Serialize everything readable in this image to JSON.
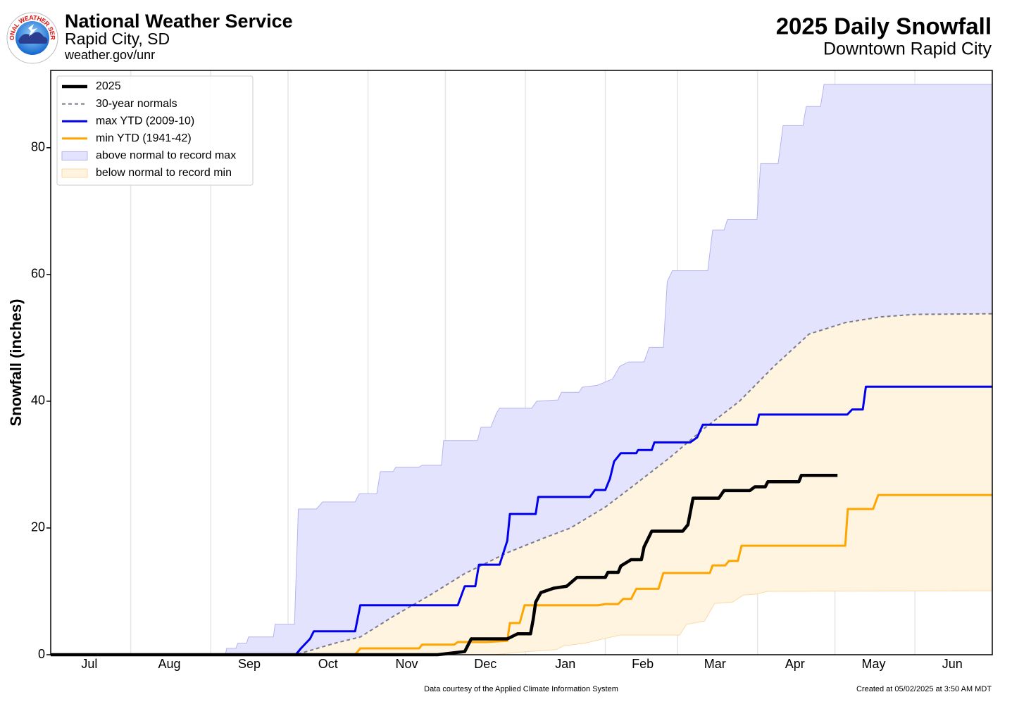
{
  "header": {
    "agency": "National Weather Service",
    "office": "Rapid City, SD",
    "url": "weather.gov/unr",
    "logo_text": "NATIONAL WEATHER SERVICE"
  },
  "chart_data": {
    "type": "line",
    "title": "2025 Daily Snowfall",
    "subtitle": "Downtown Rapid City",
    "ylabel": "Snowfall (inches)",
    "xlim": [
      0,
      365
    ],
    "ylim": [
      0,
      92.2
    ],
    "xticks": [
      {
        "value": 15,
        "label": "Jul"
      },
      {
        "value": 46,
        "label": "Aug"
      },
      {
        "value": 77,
        "label": "Sep"
      },
      {
        "value": 107.5,
        "label": "Oct"
      },
      {
        "value": 138,
        "label": "Nov"
      },
      {
        "value": 168.5,
        "label": "Dec"
      },
      {
        "value": 199.5,
        "label": "Jan"
      },
      {
        "value": 229.5,
        "label": "Feb"
      },
      {
        "value": 257.5,
        "label": "Mar"
      },
      {
        "value": 288.5,
        "label": "Apr"
      },
      {
        "value": 319,
        "label": "May"
      },
      {
        "value": 349.5,
        "label": "Jun"
      }
    ],
    "xgrid": [
      31,
      62,
      92,
      123,
      153,
      184,
      215,
      243,
      274,
      304,
      335
    ],
    "yticks": [
      0,
      20,
      40,
      60,
      80
    ],
    "legend": "upper left",
    "series": [
      {
        "name": "2025",
        "color": "#000000",
        "width": 4.5,
        "dash": false,
        "x": [
          0,
          150,
          160.5,
          163,
          177,
          181,
          186,
          187,
          188,
          190,
          195,
          200,
          204,
          215,
          216,
          220,
          221,
          225,
          229,
          230,
          233,
          245,
          247,
          249,
          259,
          261,
          271,
          273,
          277,
          278,
          290,
          291,
          305
        ],
        "values": [
          0,
          0,
          0.5,
          2.5,
          2.5,
          3.3,
          3.3,
          5.5,
          8.3,
          9.8,
          10.5,
          10.8,
          12.2,
          12.2,
          13,
          13,
          14,
          15,
          15,
          17,
          19.5,
          19.5,
          20.5,
          24.7,
          24.7,
          25.9,
          25.9,
          26.5,
          26.5,
          27.3,
          27.3,
          28.3,
          28.3
        ]
      },
      {
        "name": "30-year normals",
        "color": "#7a7a8c",
        "width": 2,
        "dash": true,
        "x": [
          0,
          95,
          110,
          120,
          133,
          147,
          160.5,
          177,
          190.5,
          201.5,
          215,
          226,
          240,
          253,
          267,
          280.6,
          294,
          308,
          321.6,
          335,
          365
        ],
        "values": [
          0,
          0,
          1.8,
          2.8,
          6.1,
          9.4,
          12.8,
          16.1,
          18.3,
          20,
          23.3,
          26.7,
          31.1,
          35.6,
          40,
          45.6,
          50.6,
          52.4,
          53.3,
          53.7,
          53.8
        ]
      },
      {
        "name": "max YTD (2009-10)",
        "color": "#0000ee",
        "width": 3,
        "dash": false,
        "x": [
          0,
          95,
          97,
          100.5,
          102,
          118,
          120,
          157.8,
          160.5,
          164.6,
          166,
          174,
          177,
          178,
          188,
          189,
          209,
          211,
          215,
          216.8,
          218.4,
          221,
          227,
          227.7,
          233,
          234,
          247.9,
          250.6,
          252.8,
          273.8,
          274.6,
          308.8,
          310.7,
          314.8,
          316,
          365
        ],
        "values": [
          0,
          0,
          1,
          2.5,
          3.7,
          3.7,
          7.8,
          7.8,
          10.8,
          10.8,
          14.2,
          14.2,
          18,
          22.2,
          22.2,
          24.9,
          24.9,
          26,
          26,
          27.8,
          30.5,
          31.8,
          31.8,
          32.3,
          32.3,
          33.5,
          33.5,
          34.3,
          36.3,
          36.3,
          37.9,
          37.9,
          38.7,
          38.7,
          42.3,
          42.3
        ]
      },
      {
        "name": "min YTD (1941-42)",
        "color": "#ffa500",
        "width": 3,
        "dash": false,
        "x": [
          0,
          118,
          120,
          142.8,
          144,
          156.4,
          157.8,
          168.7,
          177,
          178,
          181.8,
          183.7,
          212.4,
          215,
          220,
          221.9,
          225,
          227,
          235.6,
          237.5,
          255.5,
          256.6,
          261.5,
          262.9,
          266.4,
          267.8,
          308,
          309,
          318.8,
          320.8,
          365
        ],
        "values": [
          0,
          0,
          1,
          1,
          1.6,
          1.6,
          2,
          2,
          2.2,
          5,
          5,
          7.8,
          7.8,
          8,
          8,
          8.8,
          8.8,
          10.4,
          10.4,
          12.9,
          12.9,
          14.1,
          14.1,
          14.8,
          14.8,
          17.2,
          17.2,
          23,
          23,
          25.2,
          25.2
        ]
      }
    ],
    "bands": [
      {
        "name": "above normal to record max",
        "color": "#e3e3fd",
        "edge": "#b4b4ee",
        "x": [
          0,
          67.7,
          68.2,
          71.8,
          72.5,
          75.9,
          76.7,
          86.3,
          87,
          94.5,
          96,
          103,
          105.4,
          118,
          119.6,
          126.4,
          127.8,
          132.7,
          133.8,
          142.8,
          144,
          151.5,
          152.3,
          165.4,
          166.8,
          170.6,
          172.8,
          174,
          186.5,
          188.4,
          196.6,
          198,
          204.8,
          206,
          211.8,
          217.8,
          220.6,
          224,
          230,
          232,
          237.5,
          239,
          241,
          254.7,
          256.6,
          261,
          262.4,
          273.8,
          275.2,
          282,
          283.9,
          291.6,
          292.9,
          298.4,
          299.8,
          365
        ],
        "values": [
          0,
          0,
          1,
          1,
          1.8,
          1.8,
          2.8,
          2.8,
          4.8,
          4.8,
          23,
          23,
          24.1,
          24.1,
          25.4,
          25.4,
          28.9,
          28.9,
          29.6,
          29.6,
          29.9,
          29.9,
          33.8,
          33.8,
          35.9,
          35.9,
          38.1,
          38.9,
          38.9,
          40,
          40.2,
          41.4,
          41.4,
          42.2,
          42.5,
          43.5,
          45.5,
          46.2,
          46.2,
          48.5,
          48.5,
          58.9,
          60.6,
          60.6,
          67,
          67,
          68.7,
          68.7,
          77.5,
          77.5,
          83.5,
          83.5,
          86.5,
          86.5,
          90,
          90
        ]
      },
      {
        "name": "below normal to record min",
        "color": "#fff4e0",
        "edge": "#fbd9a6",
        "x": [
          0,
          171.4,
          185,
          196,
          198.7,
          207,
          211,
          220.6,
          243.8,
          246.5,
          253.4,
          257.4,
          264.3,
          268.4,
          273.8,
          277.9,
          365
        ],
        "values": [
          0,
          0,
          0.5,
          0.8,
          1.4,
          1.8,
          2.2,
          3.1,
          3.1,
          4.8,
          5.3,
          8.1,
          8.3,
          9.4,
          9.6,
          10,
          10.1
        ]
      }
    ]
  },
  "footer": {
    "credit": "Data courtesy of the Applied Climate Information System",
    "created": "Created at 05/02/2025 at 3:50 AM MDT"
  }
}
